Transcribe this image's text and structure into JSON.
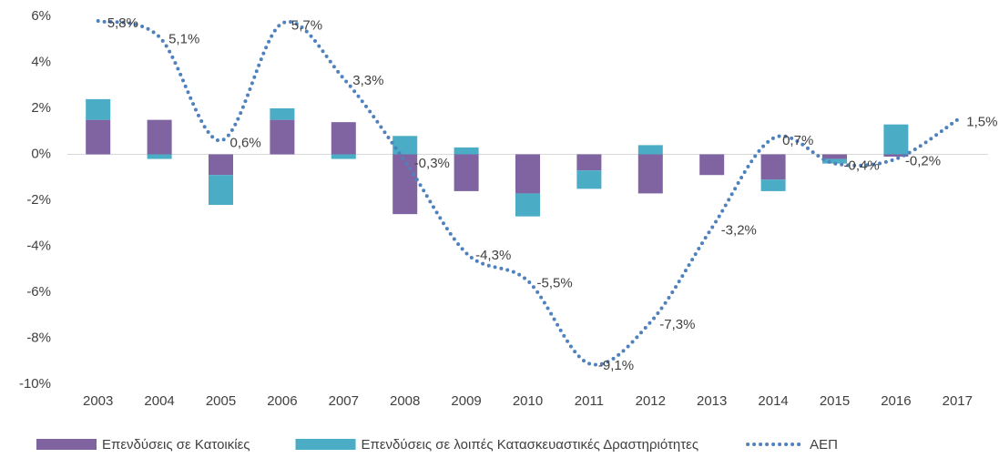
{
  "chart_data": {
    "type": "bar_line",
    "categories": [
      "2003",
      "2004",
      "2005",
      "2006",
      "2007",
      "2008",
      "2009",
      "2010",
      "2011",
      "2012",
      "2013",
      "2014",
      "2015",
      "2016",
      "2017"
    ],
    "series": [
      {
        "name": "Επενδύσεις σε Κατοικίες",
        "color": "#8064a2",
        "kind": "bar",
        "values": [
          1.5,
          1.5,
          -0.9,
          1.5,
          1.4,
          -2.6,
          -1.6,
          -1.7,
          -0.7,
          -1.7,
          -0.9,
          -1.1,
          -0.2,
          -0.1,
          0
        ]
      },
      {
        "name": "Επενδύσεις σε λοιπές Κατασκευαστικές Δραστηριότητες",
        "color": "#4bacc6",
        "kind": "bar",
        "values": [
          0.9,
          -0.2,
          -1.3,
          0.5,
          -0.2,
          0.8,
          0.3,
          -1.0,
          -0.8,
          0.4,
          0,
          -0.5,
          -0.2,
          1.3,
          0
        ]
      },
      {
        "name": "ΑΕΠ",
        "color": "#4f81bd",
        "kind": "line",
        "values": [
          5.8,
          5.1,
          0.6,
          5.7,
          3.3,
          -0.3,
          -4.3,
          -5.5,
          -9.1,
          -7.3,
          -3.2,
          0.7,
          -0.4,
          -0.2,
          1.5
        ],
        "value_labels": [
          "5,8%",
          "5,1%",
          "0,6%",
          "5,7%",
          "3,3%",
          "-0,3%",
          "-4,3%",
          "-5,5%",
          "-9,1%",
          "-7,3%",
          "-3,2%",
          "0,7%",
          "-0,4%",
          "-0,2%",
          "1,5%"
        ]
      }
    ],
    "ylim": [
      -10,
      6
    ],
    "yticks": [
      {
        "value": -10,
        "label": "-10%"
      },
      {
        "value": -8,
        "label": "-8%"
      },
      {
        "value": -6,
        "label": "-6%"
      },
      {
        "value": -4,
        "label": "-4%"
      },
      {
        "value": -2,
        "label": "-2%"
      },
      {
        "value": 0,
        "label": "0%"
      },
      {
        "value": 2,
        "label": "2%"
      },
      {
        "value": 4,
        "label": "4%"
      },
      {
        "value": 6,
        "label": "6%"
      }
    ],
    "legend": "bottom"
  }
}
